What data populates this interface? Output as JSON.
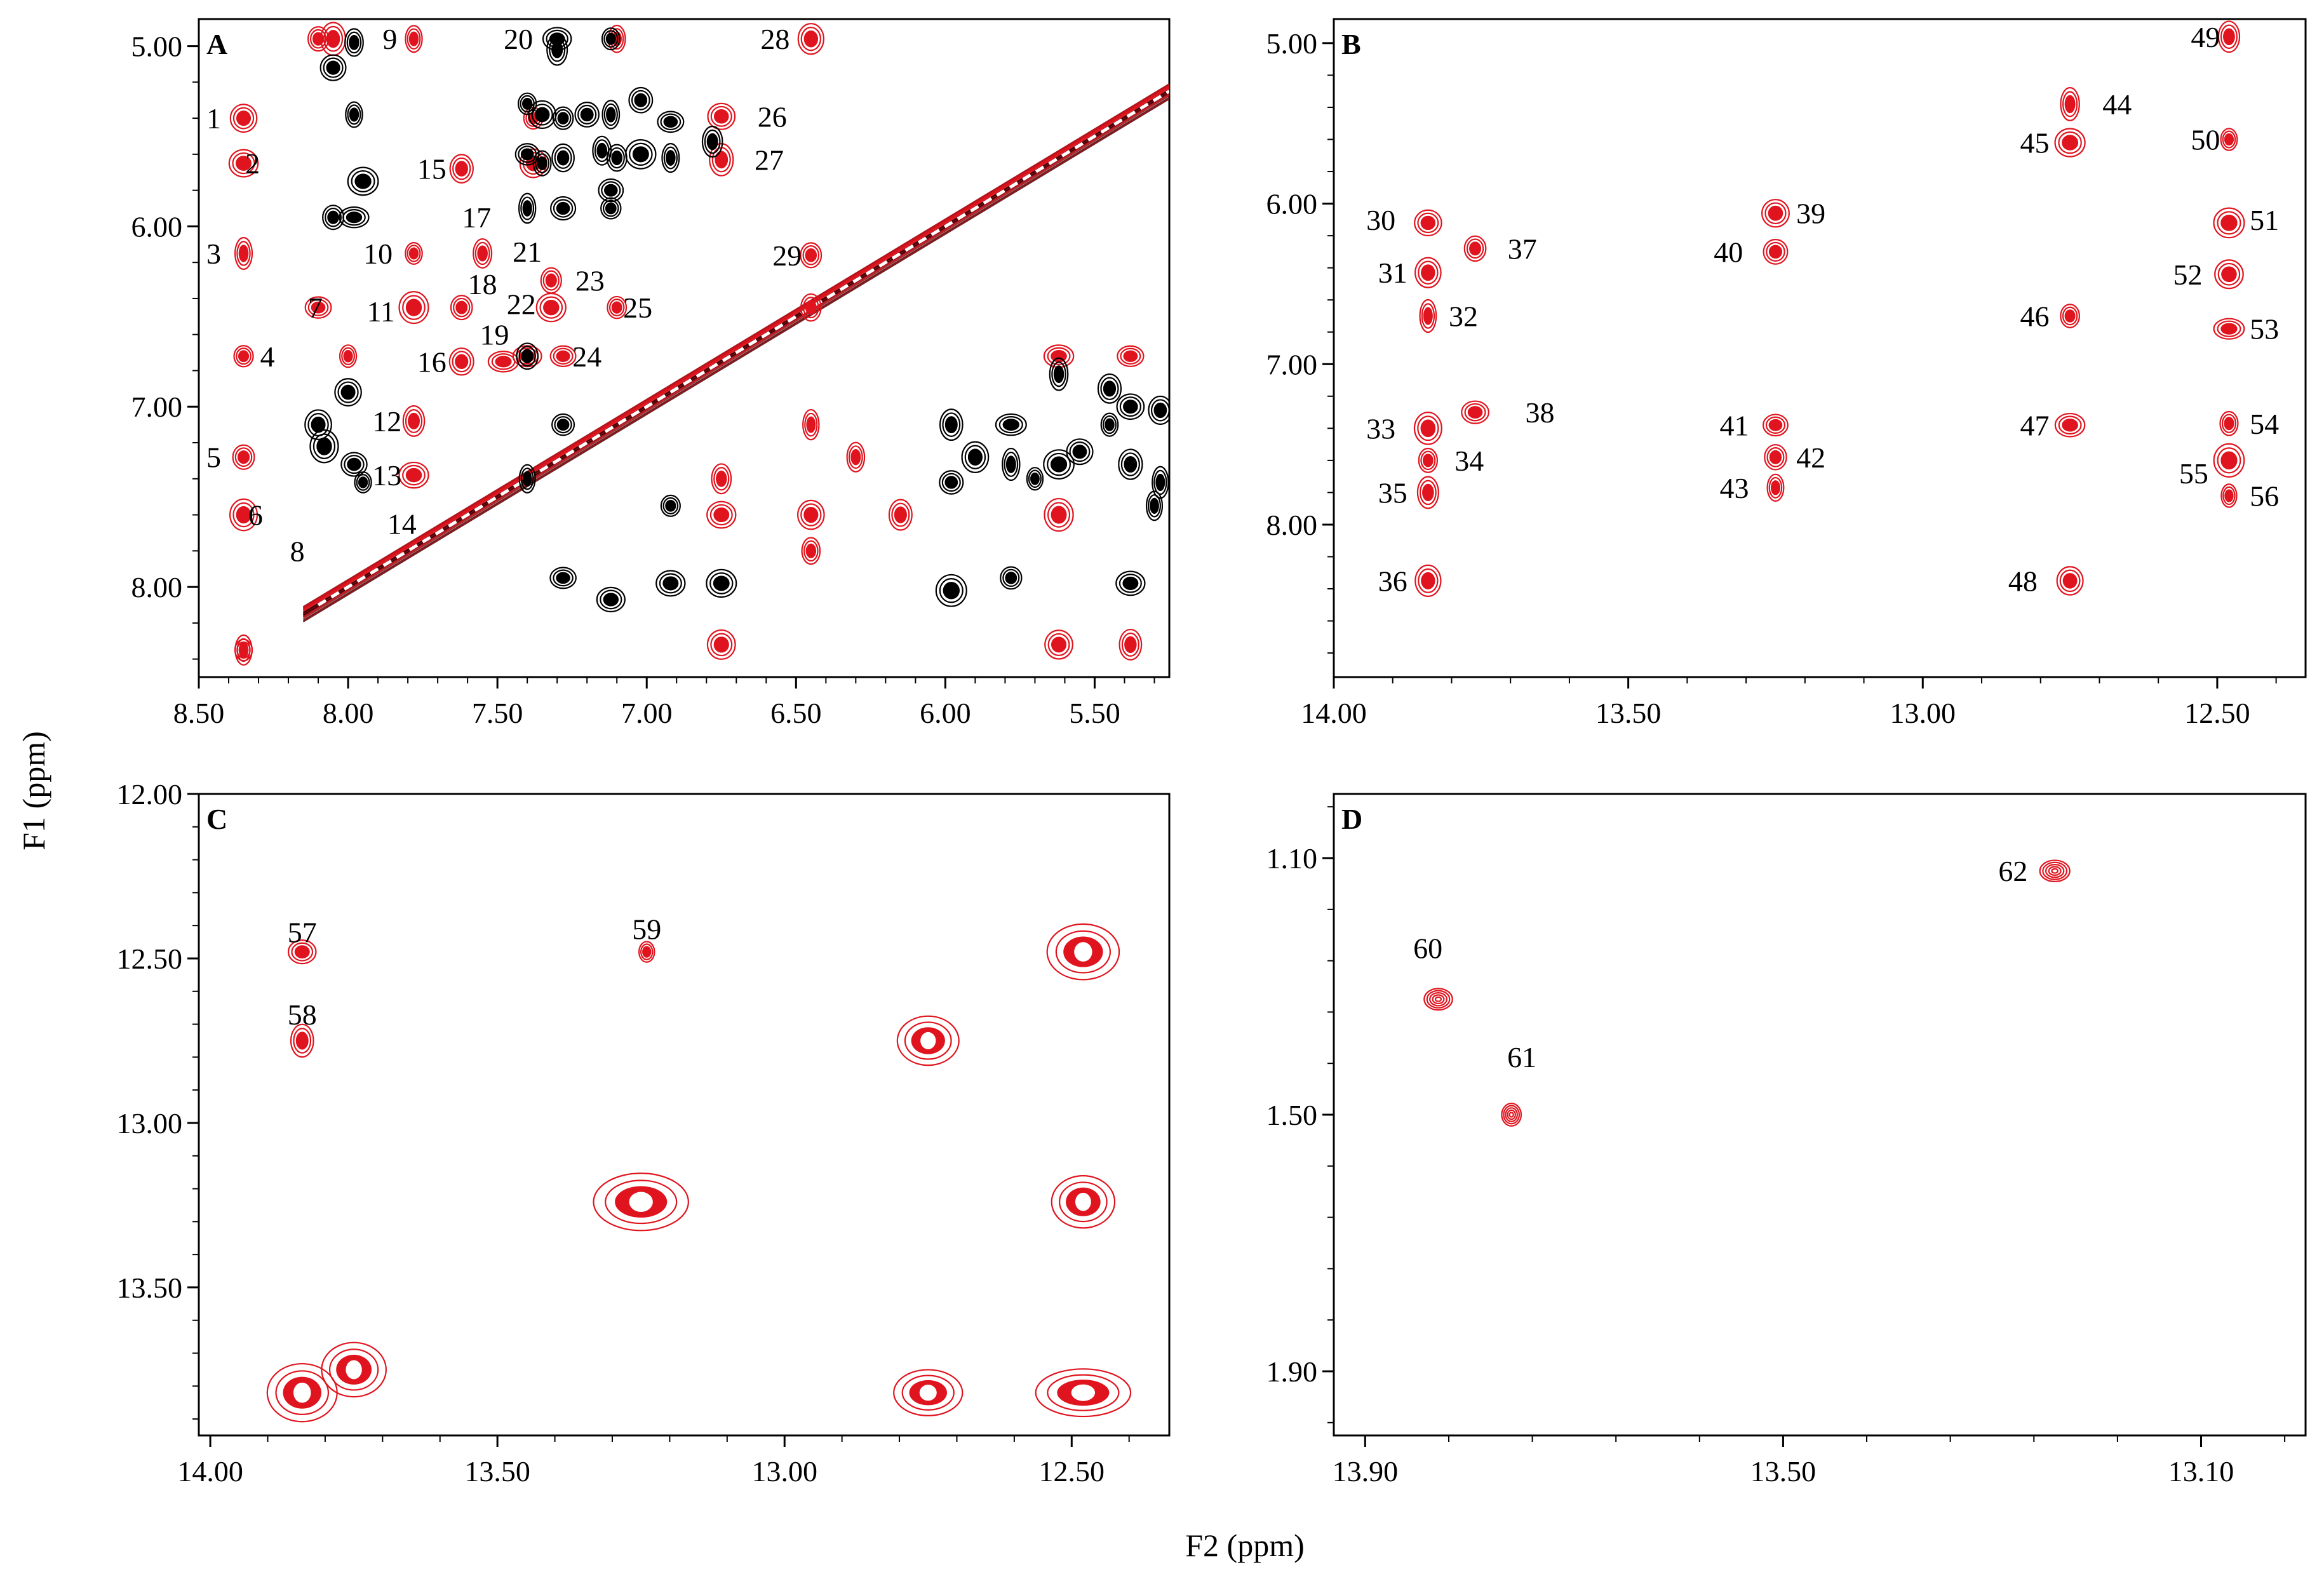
{
  "figure": {
    "f1_label": "F1 (ppm)",
    "f2_label": "F2 (ppm)"
  },
  "colors": {
    "red": "#e0141e",
    "black": "#000000",
    "diag_red": "#e0141e"
  },
  "chart_data": [
    {
      "type": "scatter",
      "panel": "A",
      "xlabel": "F2 (ppm)",
      "ylabel": "F1 (ppm)",
      "xlim": [
        8.5,
        5.25
      ],
      "ylim": [
        4.85,
        8.5
      ],
      "xticks": [
        8.5,
        8.0,
        7.5,
        7.0,
        6.5,
        6.0,
        5.5
      ],
      "xtick_labels": [
        "8.50",
        "8.00",
        "7.50",
        "7.00",
        "6.50",
        "6.00",
        "5.50"
      ],
      "yticks": [
        5.0,
        6.0,
        7.0,
        8.0
      ],
      "ytick_labels": [
        "5.00",
        "6.00",
        "7.00",
        "8.00"
      ],
      "diagonal": true,
      "labels": [
        {
          "text": "1",
          "x": 8.45,
          "y": 5.4
        },
        {
          "text": "2",
          "x": 8.32,
          "y": 5.65
        },
        {
          "text": "3",
          "x": 8.45,
          "y": 6.15
        },
        {
          "text": "4",
          "x": 8.27,
          "y": 6.72
        },
        {
          "text": "5",
          "x": 8.45,
          "y": 7.28
        },
        {
          "text": "6",
          "x": 8.31,
          "y": 7.6
        },
        {
          "text": "7",
          "x": 8.11,
          "y": 6.45
        },
        {
          "text": "8",
          "x": 8.17,
          "y": 7.8
        },
        {
          "text": "9",
          "x": 7.86,
          "y": 4.96
        },
        {
          "text": "10",
          "x": 7.9,
          "y": 6.15
        },
        {
          "text": "11",
          "x": 7.89,
          "y": 6.47
        },
        {
          "text": "12",
          "x": 7.87,
          "y": 7.08
        },
        {
          "text": "13",
          "x": 7.87,
          "y": 7.38
        },
        {
          "text": "14",
          "x": 7.82,
          "y": 7.65
        },
        {
          "text": "15",
          "x": 7.72,
          "y": 5.68
        },
        {
          "text": "16",
          "x": 7.72,
          "y": 6.75
        },
        {
          "text": "17",
          "x": 7.57,
          "y": 5.95
        },
        {
          "text": "18",
          "x": 7.55,
          "y": 6.32
        },
        {
          "text": "19",
          "x": 7.51,
          "y": 6.6
        },
        {
          "text": "20",
          "x": 7.43,
          "y": 4.96
        },
        {
          "text": "21",
          "x": 7.4,
          "y": 6.14
        },
        {
          "text": "22",
          "x": 7.42,
          "y": 6.43
        },
        {
          "text": "23",
          "x": 7.19,
          "y": 6.3
        },
        {
          "text": "24",
          "x": 7.2,
          "y": 6.72
        },
        {
          "text": "25",
          "x": 7.03,
          "y": 6.45
        },
        {
          "text": "26",
          "x": 6.58,
          "y": 5.39
        },
        {
          "text": "27",
          "x": 6.59,
          "y": 5.63
        },
        {
          "text": "28",
          "x": 6.57,
          "y": 4.96
        },
        {
          "text": "29",
          "x": 6.53,
          "y": 6.16
        }
      ],
      "series": [
        {
          "name": "red",
          "points": [
            [
              8.35,
              5.4
            ],
            [
              8.35,
              5.65
            ],
            [
              8.35,
              6.15
            ],
            [
              8.35,
              6.72
            ],
            [
              8.35,
              7.28
            ],
            [
              8.35,
              7.6
            ],
            [
              8.35,
              8.35
            ],
            [
              8.1,
              6.45
            ],
            [
              8.1,
              4.96
            ],
            [
              8.05,
              4.96
            ],
            [
              8.0,
              6.72
            ],
            [
              7.78,
              4.96
            ],
            [
              7.78,
              6.15
            ],
            [
              7.78,
              6.45
            ],
            [
              7.78,
              7.08
            ],
            [
              7.78,
              7.38
            ],
            [
              7.62,
              5.68
            ],
            [
              7.62,
              6.75
            ],
            [
              7.62,
              6.45
            ],
            [
              7.55,
              6.15
            ],
            [
              7.48,
              6.75
            ],
            [
              7.4,
              6.72
            ],
            [
              7.32,
              6.3
            ],
            [
              7.32,
              6.45
            ],
            [
              7.28,
              6.72
            ],
            [
              7.38,
              5.4
            ],
            [
              7.38,
              5.65
            ],
            [
              7.1,
              4.96
            ],
            [
              7.1,
              6.45
            ],
            [
              6.75,
              5.39
            ],
            [
              6.75,
              5.63
            ],
            [
              6.45,
              4.96
            ],
            [
              6.45,
              6.16
            ],
            [
              6.45,
              6.45
            ],
            [
              6.75,
              7.6
            ],
            [
              6.75,
              8.32
            ],
            [
              6.45,
              7.6
            ],
            [
              6.45,
              7.8
            ],
            [
              6.15,
              7.6
            ],
            [
              6.3,
              7.28
            ],
            [
              5.62,
              6.72
            ],
            [
              5.38,
              6.72
            ],
            [
              5.62,
              7.6
            ],
            [
              5.38,
              8.32
            ],
            [
              5.62,
              8.32
            ],
            [
              6.75,
              7.4
            ],
            [
              6.45,
              7.1
            ],
            [
              8.35,
              8.35
            ]
          ]
        },
        {
          "name": "black",
          "points": [
            [
              8.05,
              5.12
            ],
            [
              7.98,
              5.38
            ],
            [
              7.95,
              5.75
            ],
            [
              8.05,
              5.95
            ],
            [
              7.98,
              5.95
            ],
            [
              8.0,
              6.92
            ],
            [
              8.1,
              7.1
            ],
            [
              8.08,
              7.22
            ],
            [
              7.98,
              7.32
            ],
            [
              7.95,
              7.42
            ],
            [
              7.98,
              4.98
            ],
            [
              7.4,
              5.32
            ],
            [
              7.35,
              5.38
            ],
            [
              7.28,
              5.4
            ],
            [
              7.2,
              5.38
            ],
            [
              7.12,
              5.38
            ],
            [
              7.4,
              5.6
            ],
            [
              7.35,
              5.65
            ],
            [
              7.28,
              5.62
            ],
            [
              7.15,
              5.58
            ],
            [
              7.1,
              5.62
            ],
            [
              7.4,
              5.9
            ],
            [
              7.28,
              5.9
            ],
            [
              7.12,
              5.9
            ],
            [
              7.4,
              6.72
            ],
            [
              7.12,
              4.96
            ],
            [
              7.02,
              5.3
            ],
            [
              6.92,
              5.42
            ],
            [
              6.92,
              5.62
            ],
            [
              6.78,
              5.53
            ],
            [
              7.3,
              5.02
            ],
            [
              7.3,
              4.96
            ],
            [
              7.02,
              5.6
            ],
            [
              7.12,
              5.8
            ],
            [
              7.28,
              7.95
            ],
            [
              7.12,
              8.07
            ],
            [
              6.92,
              7.98
            ],
            [
              6.75,
              7.98
            ],
            [
              6.92,
              7.55
            ],
            [
              5.98,
              7.1
            ],
            [
              5.78,
              7.1
            ],
            [
              5.98,
              7.42
            ],
            [
              5.9,
              7.28
            ],
            [
              5.78,
              7.32
            ],
            [
              5.7,
              7.4
            ],
            [
              5.62,
              7.32
            ],
            [
              5.55,
              7.25
            ],
            [
              5.45,
              7.1
            ],
            [
              5.38,
              7.32
            ],
            [
              5.28,
              7.42
            ],
            [
              5.3,
              7.55
            ],
            [
              5.38,
              7.0
            ],
            [
              5.45,
              6.9
            ],
            [
              5.62,
              6.82
            ],
            [
              5.98,
              8.02
            ],
            [
              5.78,
              7.95
            ],
            [
              5.38,
              7.98
            ],
            [
              5.28,
              7.02
            ],
            [
              7.4,
              7.4
            ],
            [
              7.28,
              7.1
            ]
          ]
        }
      ]
    },
    {
      "type": "scatter",
      "panel": "B",
      "xlim": [
        14.0,
        12.35
      ],
      "ylim": [
        4.85,
        8.95
      ],
      "xticks": [
        14.0,
        13.5,
        13.0,
        12.5
      ],
      "xtick_labels": [
        "14.00",
        "13.50",
        "13.00",
        "12.50"
      ],
      "yticks": [
        5.0,
        6.0,
        7.0,
        8.0
      ],
      "ytick_labels": [
        "5.00",
        "6.00",
        "7.00",
        "8.00"
      ],
      "labels": [
        {
          "text": "30",
          "x": 13.92,
          "y": 6.1
        },
        {
          "text": "31",
          "x": 13.9,
          "y": 6.43
        },
        {
          "text": "32",
          "x": 13.78,
          "y": 6.7
        },
        {
          "text": "33",
          "x": 13.92,
          "y": 7.4
        },
        {
          "text": "34",
          "x": 13.77,
          "y": 7.6
        },
        {
          "text": "35",
          "x": 13.9,
          "y": 7.8
        },
        {
          "text": "36",
          "x": 13.9,
          "y": 8.35
        },
        {
          "text": "37",
          "x": 13.68,
          "y": 6.28
        },
        {
          "text": "38",
          "x": 13.65,
          "y": 7.3
        },
        {
          "text": "39",
          "x": 13.19,
          "y": 6.06
        },
        {
          "text": "40",
          "x": 13.33,
          "y": 6.3
        },
        {
          "text": "41",
          "x": 13.32,
          "y": 7.38
        },
        {
          "text": "42",
          "x": 13.19,
          "y": 7.58
        },
        {
          "text": "43",
          "x": 13.32,
          "y": 7.77
        },
        {
          "text": "44",
          "x": 12.67,
          "y": 5.38
        },
        {
          "text": "45",
          "x": 12.81,
          "y": 5.62
        },
        {
          "text": "46",
          "x": 12.81,
          "y": 6.7
        },
        {
          "text": "47",
          "x": 12.81,
          "y": 7.38
        },
        {
          "text": "48",
          "x": 12.83,
          "y": 8.35
        },
        {
          "text": "49",
          "x": 12.52,
          "y": 4.96
        },
        {
          "text": "50",
          "x": 12.52,
          "y": 5.6
        },
        {
          "text": "51",
          "x": 12.42,
          "y": 6.1
        },
        {
          "text": "52",
          "x": 12.55,
          "y": 6.44
        },
        {
          "text": "53",
          "x": 12.42,
          "y": 6.78
        },
        {
          "text": "54",
          "x": 12.42,
          "y": 7.37
        },
        {
          "text": "55",
          "x": 12.54,
          "y": 7.68
        },
        {
          "text": "56",
          "x": 12.42,
          "y": 7.82
        }
      ],
      "series": [
        {
          "name": "red",
          "points": [
            [
              13.84,
              6.12
            ],
            [
              13.84,
              6.43
            ],
            [
              13.84,
              6.7
            ],
            [
              13.84,
              7.4
            ],
            [
              13.84,
              7.6
            ],
            [
              13.84,
              7.8
            ],
            [
              13.84,
              8.35
            ],
            [
              13.76,
              6.28
            ],
            [
              13.76,
              7.3
            ],
            [
              13.25,
              6.06
            ],
            [
              13.25,
              6.3
            ],
            [
              13.25,
              7.38
            ],
            [
              13.25,
              7.58
            ],
            [
              13.25,
              7.77
            ],
            [
              12.75,
              5.38
            ],
            [
              12.75,
              5.62
            ],
            [
              12.75,
              6.7
            ],
            [
              12.75,
              7.38
            ],
            [
              12.75,
              8.35
            ],
            [
              12.48,
              4.96
            ],
            [
              12.48,
              5.6
            ],
            [
              12.48,
              6.12
            ],
            [
              12.48,
              6.44
            ],
            [
              12.48,
              6.78
            ],
            [
              12.48,
              7.37
            ],
            [
              12.48,
              7.6
            ],
            [
              12.48,
              7.82
            ]
          ]
        }
      ]
    },
    {
      "type": "scatter",
      "panel": "C",
      "xlim": [
        14.02,
        12.33
      ],
      "ylim": [
        12.0,
        13.95
      ],
      "xticks": [
        14.0,
        13.5,
        13.0,
        12.5
      ],
      "xtick_labels": [
        "14.00",
        "13.50",
        "13.00",
        "12.50"
      ],
      "yticks": [
        12.0,
        12.5,
        13.0,
        13.5
      ],
      "ytick_labels": [
        "12.00",
        "12.50",
        "13.00",
        "13.50"
      ],
      "labels": [
        {
          "text": "57",
          "x": 13.84,
          "y": 12.42
        },
        {
          "text": "58",
          "x": 13.84,
          "y": 12.67
        },
        {
          "text": "59",
          "x": 13.24,
          "y": 12.41
        }
      ],
      "series": [
        {
          "name": "red",
          "points": [
            [
              13.84,
              12.48
            ],
            [
              13.84,
              12.75
            ],
            [
              13.24,
              12.48
            ],
            [
              12.48,
              12.48
            ],
            [
              12.75,
              12.75
            ],
            [
              13.25,
              13.24
            ],
            [
              13.84,
              13.82
            ],
            [
              13.75,
              13.75
            ],
            [
              12.75,
              13.82
            ],
            [
              12.48,
              13.82
            ],
            [
              12.48,
              13.24
            ]
          ]
        }
      ]
    },
    {
      "type": "scatter",
      "panel": "D",
      "xlim": [
        13.93,
        13.0
      ],
      "ylim": [
        1.0,
        2.0
      ],
      "xticks": [
        13.9,
        13.5,
        13.1
      ],
      "xtick_labels": [
        "13.90",
        "13.50",
        "13.10"
      ],
      "yticks": [
        1.1,
        1.5,
        1.9
      ],
      "ytick_labels": [
        "1.10",
        "1.50",
        "1.90"
      ],
      "labels": [
        {
          "text": "60",
          "x": 13.84,
          "y": 1.24
        },
        {
          "text": "61",
          "x": 13.75,
          "y": 1.41
        },
        {
          "text": "62",
          "x": 13.28,
          "y": 1.12
        }
      ],
      "series": [
        {
          "name": "red",
          "points": [
            [
              13.83,
              1.32
            ],
            [
              13.76,
              1.5
            ],
            [
              13.24,
              1.12
            ]
          ]
        }
      ]
    }
  ]
}
